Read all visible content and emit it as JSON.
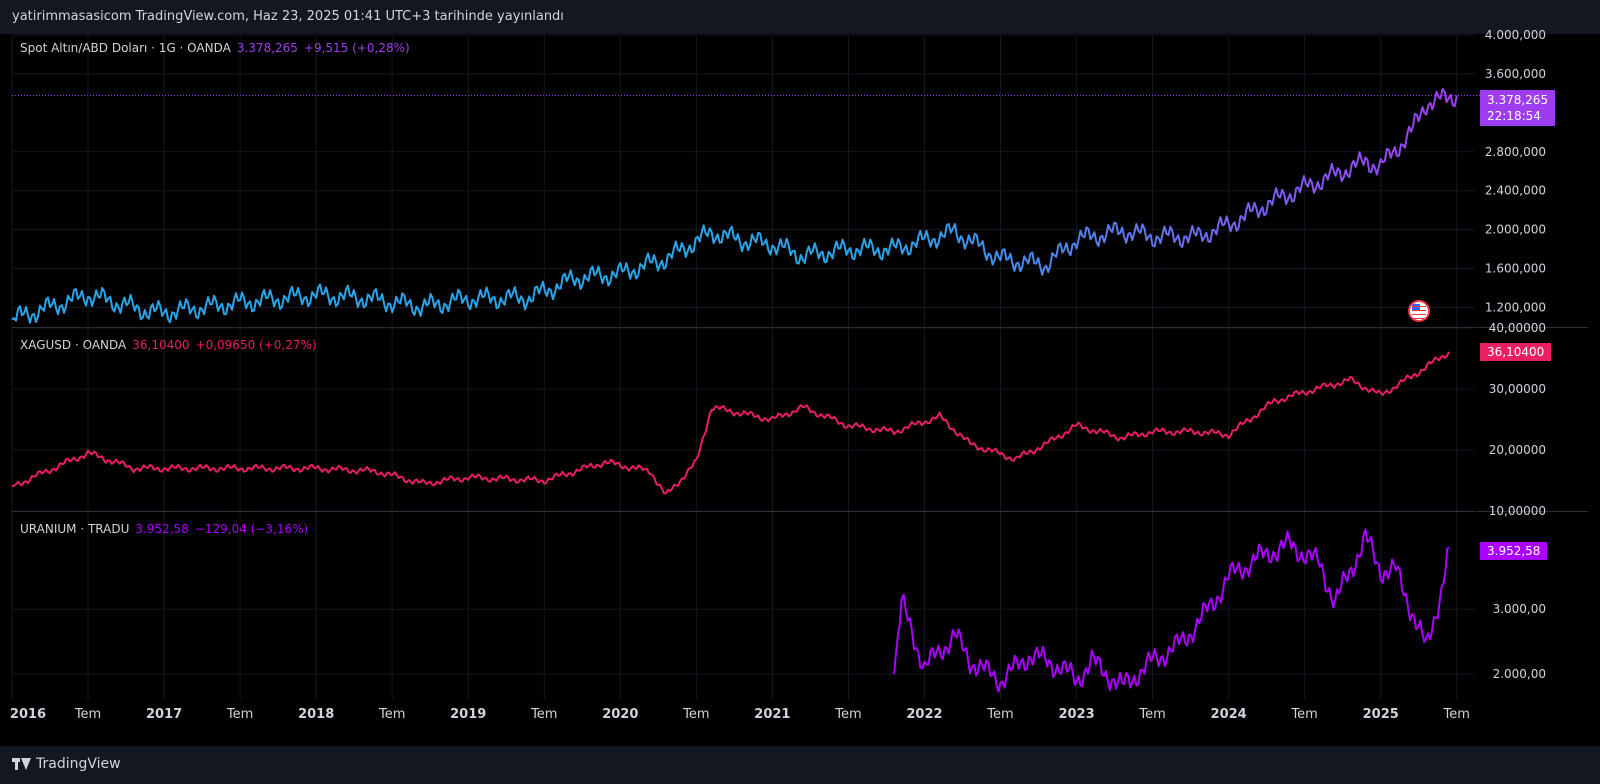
{
  "header": {
    "text": "yatirimmasasicom TradingView.com, Haz 23, 2025 01:41 UTC+3 tarihinde yayınlandı"
  },
  "footer": {
    "brand": "TradingView"
  },
  "colors": {
    "gold_start": "#2aa4e8",
    "gold_end": "#a03cf0",
    "silver": "#e91e63",
    "uranium": "#aa00ff",
    "background": "#000000",
    "panel": "#131722",
    "axis_text": "#d1d4dc"
  },
  "chart_data": [
    {
      "type": "line",
      "symbol": "Spot Altın/ABD Doları · 1G · OANDA",
      "last": "3.378,265",
      "change": "+9,515 (+0,28%)",
      "badge_value": "3.378,265",
      "badge_time": "22:18:54",
      "y_ticks": [
        "4.000,000",
        "3.600,000",
        "2.800,000",
        "2.400,000",
        "2.000,000",
        "1.600,000",
        "1.200,000"
      ],
      "ylim": [
        1000,
        4000
      ],
      "x": [
        2016.0,
        2016.5,
        2016.9,
        2017.0,
        2017.5,
        2018.0,
        2018.3,
        2018.7,
        2019.0,
        2019.4,
        2019.7,
        2020.0,
        2020.3,
        2020.6,
        2020.8,
        2021.0,
        2021.2,
        2021.5,
        2021.8,
        2022.2,
        2022.5,
        2022.8,
        2023.0,
        2023.3,
        2023.5,
        2023.8,
        2024.0,
        2024.3,
        2024.6,
        2024.9,
        2025.0,
        2025.2,
        2025.3,
        2025.5
      ],
      "y": [
        1080,
        1330,
        1160,
        1150,
        1250,
        1330,
        1300,
        1210,
        1290,
        1300,
        1500,
        1550,
        1700,
        1970,
        1890,
        1850,
        1730,
        1800,
        1800,
        1980,
        1700,
        1640,
        1900,
        1990,
        1930,
        1930,
        2050,
        2300,
        2500,
        2700,
        2650,
        3000,
        3300,
        3378
      ]
    },
    {
      "type": "line",
      "symbol": "XAGUSD · OANDA",
      "last": "36,10400",
      "change": "+0,09650 (+0,27%)",
      "badge_value": "36,10400",
      "y_ticks": [
        "40,00000",
        "30,00000",
        "20,00000",
        "10,00000"
      ],
      "ylim": [
        10,
        40
      ],
      "x": [
        2016.0,
        2016.5,
        2016.8,
        2017.0,
        2017.5,
        2018.0,
        2018.4,
        2018.7,
        2019.0,
        2019.5,
        2019.9,
        2020.2,
        2020.3,
        2020.5,
        2020.6,
        2021.0,
        2021.2,
        2021.5,
        2021.8,
        2022.1,
        2022.3,
        2022.6,
        2022.8,
        2023.0,
        2023.3,
        2023.5,
        2023.8,
        2024.0,
        2024.3,
        2024.5,
        2024.8,
        2025.0,
        2025.2,
        2025.45
      ],
      "y": [
        14,
        19.5,
        17,
        17,
        17,
        17,
        16.5,
        14.5,
        15.5,
        15,
        18,
        16.5,
        12.5,
        18,
        27,
        25,
        27,
        24,
        23,
        25.5,
        21,
        18.5,
        21,
        24,
        22,
        23,
        23,
        22.5,
        28,
        29.5,
        31.5,
        29,
        32,
        36.1
      ]
    },
    {
      "type": "line",
      "symbol": "URANIUM · TRADU",
      "last": "3.952,58",
      "change": "−129,04 (−3,16%)",
      "badge_value": "3.952,58",
      "y_ticks": [
        "3.000,00",
        "2.000,00"
      ],
      "ylim": [
        1600,
        4500
      ],
      "x": [
        2021.8,
        2021.85,
        2022.0,
        2022.2,
        2022.3,
        2022.5,
        2022.7,
        2022.9,
        2023.0,
        2023.1,
        2023.3,
        2023.5,
        2023.7,
        2023.9,
        2024.0,
        2024.2,
        2024.4,
        2024.6,
        2024.7,
        2024.9,
        2025.0,
        2025.1,
        2025.3,
        2025.4,
        2025.45
      ],
      "y": [
        2000,
        3100,
        2100,
        2600,
        2200,
        1900,
        2300,
        2100,
        1900,
        2200,
        1800,
        2200,
        2500,
        3100,
        3500,
        3800,
        4000,
        3700,
        3100,
        4100,
        3600,
        3600,
        2400,
        3300,
        3952
      ]
    }
  ],
  "x_axis_labels": [
    "2016",
    "Tem",
    "2017",
    "Tem",
    "2018",
    "Tem",
    "2019",
    "Tem",
    "2020",
    "Tem",
    "2021",
    "Tem",
    "2022",
    "Tem",
    "2023",
    "Tem",
    "2024",
    "Tem",
    "2025",
    "Tem"
  ]
}
